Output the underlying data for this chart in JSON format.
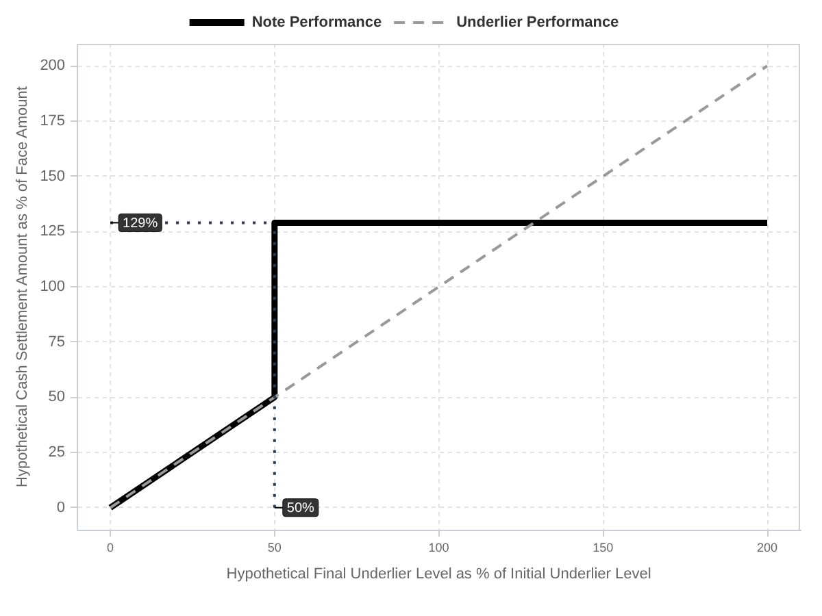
{
  "chart_data": {
    "type": "line",
    "xlabel": "Hypothetical Final Underlier Level as % of Initial Underlier Level",
    "ylabel": "Hypothetical Cash Settlement Amount as % of Face Amount",
    "xlim": [
      -10,
      210
    ],
    "ylim": [
      -10,
      210
    ],
    "xticks": [
      0,
      50,
      100,
      150,
      200
    ],
    "yticks": [
      0,
      25,
      50,
      75,
      100,
      125,
      150,
      175,
      200
    ],
    "grid": true,
    "legend": "top",
    "series": [
      {
        "name": "Note Performance",
        "color": "#000000",
        "line_style": "solid",
        "x": [
          0,
          50,
          50,
          200
        ],
        "values": [
          0,
          50,
          129,
          129
        ]
      },
      {
        "name": "Underlier Performance",
        "color": "#999999",
        "line_style": "dashed",
        "x": [
          0,
          200
        ],
        "values": [
          0,
          200
        ]
      },
      {
        "color": "#2b3a55",
        "line_style": "dotted",
        "x": [
          0,
          50
        ],
        "values": [
          129,
          129
        ]
      },
      {
        "color": "#2b3a55",
        "line_style": "dotted",
        "x": [
          50,
          50
        ],
        "values": [
          0,
          129
        ]
      }
    ],
    "annotations": [
      {
        "text": "129%",
        "x": 0,
        "y": 129
      },
      {
        "text": "50%",
        "x": 50,
        "y": 0
      }
    ]
  }
}
